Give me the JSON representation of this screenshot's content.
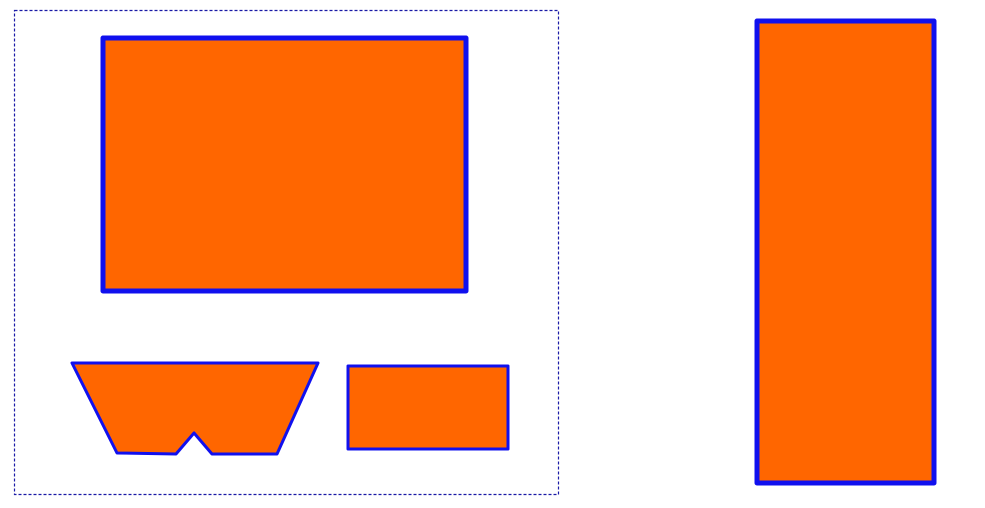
{
  "colors": {
    "background": "#ffffff",
    "shape_fill": "#ff6600",
    "shape_stroke": "#1010ee",
    "frame_stroke": "#1a1aa6"
  },
  "shapes": [
    {
      "id": "large-rectangle",
      "kind": "rectangle"
    },
    {
      "id": "notched-trapezoid",
      "kind": "polygon"
    },
    {
      "id": "small-rectangle",
      "kind": "rectangle"
    },
    {
      "id": "tall-rectangle",
      "kind": "rectangle"
    }
  ],
  "frame": {
    "style": "dashed"
  }
}
